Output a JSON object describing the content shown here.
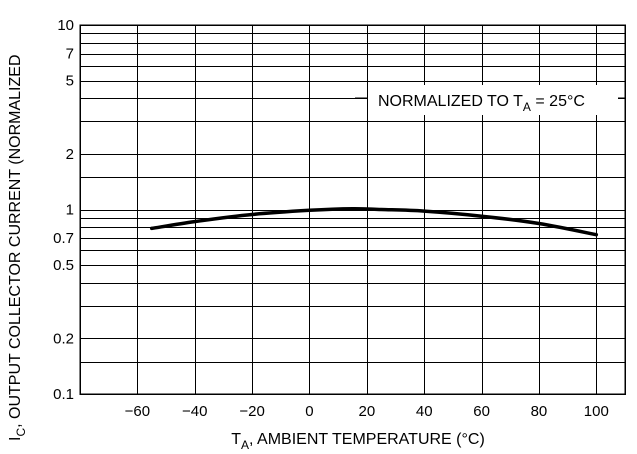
{
  "chart_data": {
    "type": "line",
    "xlabel": {
      "main": "T",
      "sub": "A",
      "rest": ", AMBIENT TEMPERATURE (°C)"
    },
    "ylabel": {
      "main": "I",
      "sub": "C",
      "rest": ", OUTPUT COLLECTOR CURRENT (NORMALIZED"
    },
    "annotation": {
      "main": "NORMALIZED TO T",
      "sub": "A",
      "rest": " = 25°C"
    },
    "x_scale": "linear",
    "y_scale": "log",
    "xlim": [
      -80,
      110
    ],
    "ylim": [
      0.1,
      10
    ],
    "x_ticks": [
      -60,
      -40,
      -20,
      0,
      20,
      40,
      60,
      80,
      100
    ],
    "x_tick_labels": [
      "−60",
      "−40",
      "−20",
      "0",
      "20",
      "40",
      "60",
      "80",
      "100"
    ],
    "y_tick_values": [
      0.1,
      0.2,
      0.5,
      0.7,
      1,
      2,
      5,
      7,
      10
    ],
    "y_tick_labels": [
      "0.1",
      "0.2",
      "0.5",
      "0.7",
      "1",
      "2",
      "5",
      "7",
      "10"
    ],
    "y_grid": [
      0.1,
      0.15,
      0.2,
      0.3,
      0.4,
      0.5,
      0.6,
      0.7,
      0.8,
      0.9,
      1,
      1.5,
      2,
      3,
      4,
      5,
      6,
      7,
      8,
      9,
      10
    ],
    "x_grid": [
      -80,
      -60,
      -40,
      -20,
      0,
      20,
      40,
      60,
      80,
      100,
      110
    ],
    "grid": true,
    "legend": "none",
    "series": [
      {
        "x": [
          -55,
          -40,
          -20,
          0,
          15,
          25,
          40,
          60,
          80,
          100
        ],
        "y": [
          0.79,
          0.86,
          0.94,
          0.99,
          1.01,
          1.0,
          0.98,
          0.92,
          0.84,
          0.73
        ]
      }
    ]
  }
}
